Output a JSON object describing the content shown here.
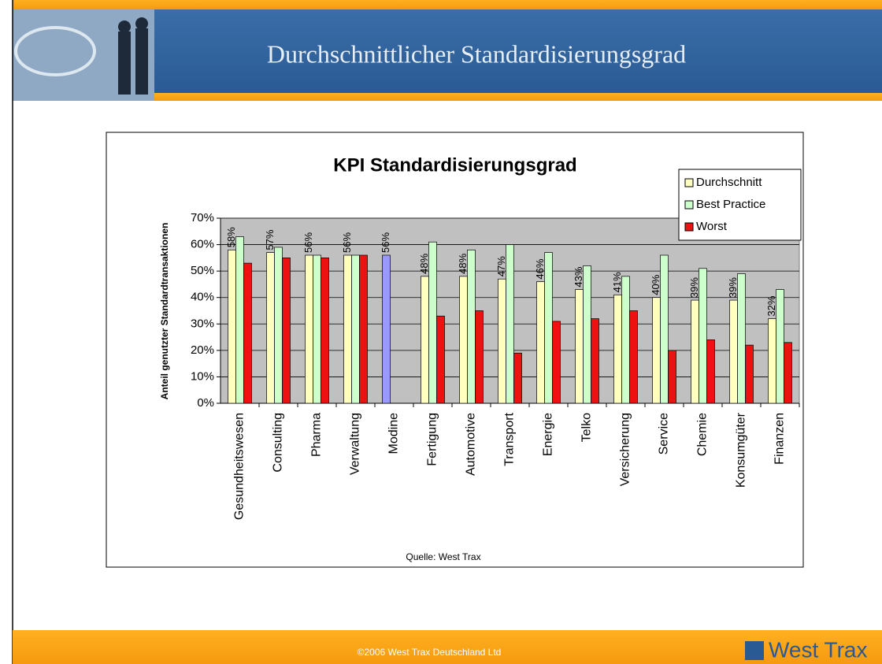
{
  "header": {
    "title": "Durchschnittlicher Standardisierungsgrad"
  },
  "footer": {
    "copyright": "©2006 West Trax Deutschland Ltd",
    "logo": "West Trax"
  },
  "chart_data": {
    "type": "bar",
    "title": "KPI Standardisierungsgrad",
    "y_label": "Anteil genutzter Standardtransaktionen",
    "source": "Quelle: West Trax",
    "categories": [
      "Gesundheitswesen",
      "Consulting",
      "Pharma",
      "Verwaltung",
      "Modine",
      "Fertigung",
      "Automotive",
      "Transport",
      "Energie",
      "Telko",
      "Versicherung",
      "Service",
      "Chemie",
      "Konsumgüter",
      "Finanzen"
    ],
    "series": [
      {
        "name": "Durchschnitt",
        "color": "#ffffc0",
        "highlight": {
          "index": 4,
          "color": "#9999ff"
        },
        "values": [
          58,
          57,
          56,
          56,
          56,
          48,
          48,
          47,
          46,
          43,
          41,
          40,
          39,
          39,
          32
        ],
        "value_labels": [
          "58%",
          "57%",
          "56%",
          "56%",
          "56%",
          "48%",
          "48%",
          "47%",
          "46%",
          "43%",
          "41%",
          "40%",
          "39%",
          "39%",
          "32%"
        ]
      },
      {
        "name": "Best Practice",
        "color": "#ccffcc",
        "values": [
          63,
          59,
          56,
          56,
          null,
          61,
          58,
          60,
          57,
          52,
          48,
          56,
          51,
          49,
          43
        ]
      },
      {
        "name": "Worst",
        "color": "#ee1111",
        "values": [
          53,
          55,
          55,
          56,
          null,
          33,
          35,
          19,
          31,
          32,
          35,
          20,
          24,
          22,
          23
        ]
      }
    ],
    "ylim": [
      0,
      70
    ],
    "yticks": [
      {
        "value": 0,
        "label": "0%"
      },
      {
        "value": 10,
        "label": "10%"
      },
      {
        "value": 20,
        "label": "20%"
      },
      {
        "value": 30,
        "label": "30%"
      },
      {
        "value": 40,
        "label": "40%"
      },
      {
        "value": 50,
        "label": "50%"
      },
      {
        "value": 60,
        "label": "60%"
      },
      {
        "value": 70,
        "label": "70%"
      }
    ],
    "grid": true,
    "legend": "top-right"
  }
}
